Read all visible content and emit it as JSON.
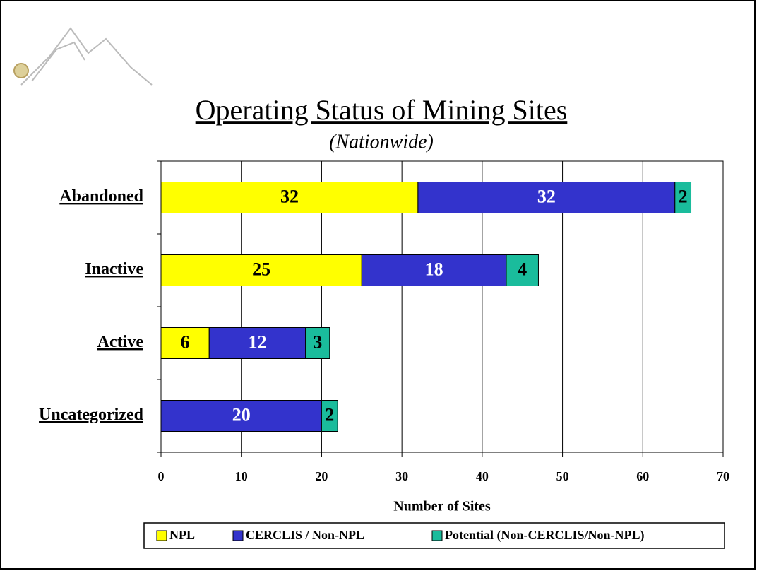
{
  "chart_data": {
    "type": "stacked-barh",
    "title": "Operating Status of Mining Sites",
    "subtitle": "(Nationwide)",
    "x_label": "Number of Sites",
    "categories": [
      "Abandoned",
      "Inactive",
      "Active",
      "Uncategorized"
    ],
    "series": [
      {
        "name": "NPL",
        "color": "#ffff00",
        "label_color": "#000000",
        "values": [
          32,
          25,
          6,
          null
        ]
      },
      {
        "name": "CERCLIS / Non-NPL",
        "color": "#3333cc",
        "label_color": "#ffffff",
        "values": [
          32,
          18,
          12,
          20
        ]
      },
      {
        "name": "Potential (Non-CERCLIS/Non-NPL)",
        "color": "#1abc9c",
        "label_color": "#000000",
        "values": [
          2,
          4,
          3,
          2
        ]
      }
    ],
    "xlim": [
      0,
      70
    ],
    "xticks": [
      0,
      10,
      20,
      30,
      40,
      50,
      60,
      70
    ],
    "grid": true,
    "legend": "bottom"
  }
}
